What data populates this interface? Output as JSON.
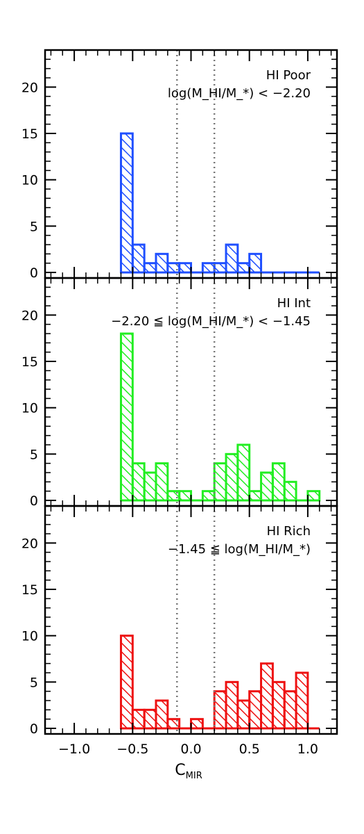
{
  "chart_data": [
    {
      "type": "bar",
      "panel": "top",
      "label_line1": "HI Poor",
      "label_line2": "log(M_HI/M_*) < −2.20",
      "color": "#1f4fff",
      "bin_edges_start": -0.6,
      "bin_width": 0.1,
      "values": [
        15,
        3,
        1,
        2,
        1,
        1,
        0,
        1,
        1,
        3,
        1,
        2,
        0,
        0,
        0,
        0,
        0
      ],
      "ylim": [
        0,
        24
      ],
      "xlim": [
        -1.25,
        1.25
      ]
    },
    {
      "type": "bar",
      "panel": "middle",
      "label_line1": "HI Int",
      "label_line2": "−2.20 ≦ log(M_HI/M_*) < −1.45",
      "color": "#22ee22",
      "bin_edges_start": -0.6,
      "bin_width": 0.1,
      "values": [
        18,
        4,
        3,
        4,
        1,
        1,
        0,
        1,
        4,
        5,
        6,
        1,
        3,
        4,
        2,
        0,
        1
      ],
      "ylim": [
        0,
        24
      ],
      "xlim": [
        -1.25,
        1.25
      ]
    },
    {
      "type": "bar",
      "panel": "bottom",
      "label_line1": "HI Rich",
      "label_line2": "−1.45 ≦ log(M_HI/M_*)",
      "color": "#ee1111",
      "bin_edges_start": -0.6,
      "bin_width": 0.1,
      "values": [
        10,
        2,
        2,
        3,
        1,
        0,
        1,
        0,
        4,
        5,
        3,
        4,
        7,
        5,
        4,
        6,
        0
      ],
      "ylim": [
        0,
        24
      ],
      "xlim": [
        -1.25,
        1.25
      ]
    }
  ],
  "axes": {
    "xlabel_main": "C",
    "xlabel_sub": "MIR",
    "xticks": [
      -1.0,
      -0.5,
      0.0,
      0.5,
      1.0
    ],
    "xtick_labels": [
      "−1.0",
      "−0.5",
      "0.0",
      "0.5",
      "1.0"
    ],
    "yticks": [
      0,
      5,
      10,
      15,
      20
    ],
    "ytick_labels": [
      "0",
      "5",
      "10",
      "15",
      "20"
    ],
    "dotted_lines_x": [
      -0.12,
      0.2
    ]
  }
}
